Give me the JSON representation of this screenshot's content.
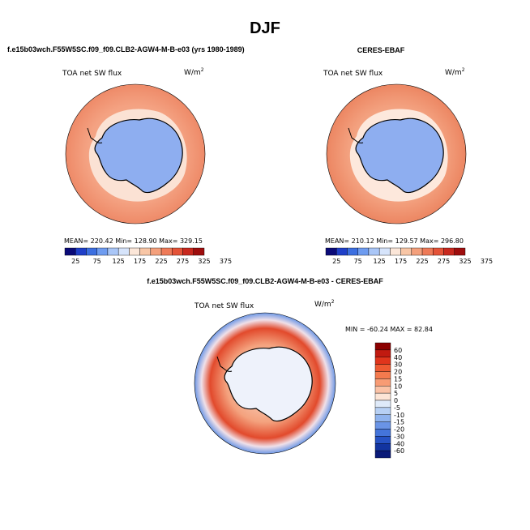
{
  "figure": {
    "title": "DJF"
  },
  "panels": [
    {
      "title": "f.e15b03wch.F55W5SC.f09_f09.CLB2-AGW4-M-B-e03 (yrs 1980-1989)",
      "variable": "TOA net SW flux",
      "units": "W/m",
      "units_exp": "2",
      "stats": "MEAN= 220.42  Min= 128.90  Max= 329.15"
    },
    {
      "title": "CERES-EBAF",
      "variable": "TOA net SW flux",
      "units": "W/m",
      "units_exp": "2",
      "stats": "MEAN= 210.12  Min= 129.57  Max= 296.80"
    },
    {
      "title": "f.e15b03wch.F55W5SC.f09_f09.CLB2-AGW4-M-B-e03 - CERES-EBAF",
      "variable": "TOA net SW flux",
      "units": "W/m",
      "units_exp": "2",
      "stats": "MIN = -60.24 MAX =  82.84"
    }
  ],
  "chart_data": [
    {
      "type": "heatmap",
      "projection": "south polar stereographic",
      "title": "f.e15b03wch.F55W5SC.f09_f09.CLB2-AGW4-M-B-e03 (yrs 1980-1989)",
      "variable": "TOA net SW flux",
      "units": "W/m2",
      "mean": 220.42,
      "min": 128.9,
      "max": 329.15,
      "colorbar": {
        "orientation": "horizontal",
        "labels": [
          "25",
          "75",
          "125",
          "175",
          "225",
          "275",
          "325",
          "375"
        ],
        "colors": [
          "#0a0a78",
          "#1f3fc8",
          "#3c6fe0",
          "#6e9cf0",
          "#a9c6f7",
          "#d6e4fb",
          "#fbe6d8",
          "#f8c6a6",
          "#f4a07c",
          "#ee7a58",
          "#e45338",
          "#c8281e",
          "#9e0d0d"
        ]
      }
    },
    {
      "type": "heatmap",
      "projection": "south polar stereographic",
      "title": "CERES-EBAF",
      "variable": "TOA net SW flux",
      "units": "W/m2",
      "mean": 210.12,
      "min": 129.57,
      "max": 296.8,
      "colorbar": {
        "orientation": "horizontal",
        "labels": [
          "25",
          "75",
          "125",
          "175",
          "225",
          "275",
          "325",
          "375"
        ],
        "colors": [
          "#0a0a78",
          "#1f3fc8",
          "#3c6fe0",
          "#6e9cf0",
          "#a9c6f7",
          "#d6e4fb",
          "#fbe6d8",
          "#f8c6a6",
          "#f4a07c",
          "#ee7a58",
          "#e45338",
          "#c8281e",
          "#9e0d0d"
        ]
      }
    },
    {
      "type": "heatmap",
      "projection": "south polar stereographic",
      "title": "f.e15b03wch.F55W5SC.f09_f09.CLB2-AGW4-M-B-e03 - CERES-EBAF",
      "variable": "TOA net SW flux",
      "units": "W/m2",
      "min": -60.24,
      "max": 82.84,
      "colorbar": {
        "orientation": "vertical",
        "labels": [
          "60",
          "40",
          "30",
          "20",
          "15",
          "10",
          "5",
          "0",
          "-5",
          "-10",
          "-15",
          "-20",
          "-30",
          "-40",
          "-60"
        ],
        "colors": [
          "#8b0000",
          "#c11a10",
          "#e0351c",
          "#ee5a32",
          "#f47a4e",
          "#f89b74",
          "#fbc2a6",
          "#fde5d6",
          "#dfeaf9",
          "#b7d0f4",
          "#8fb3ee",
          "#6a94e6",
          "#4474da",
          "#2652c4",
          "#1234a0",
          "#0a1a78"
        ]
      }
    }
  ]
}
